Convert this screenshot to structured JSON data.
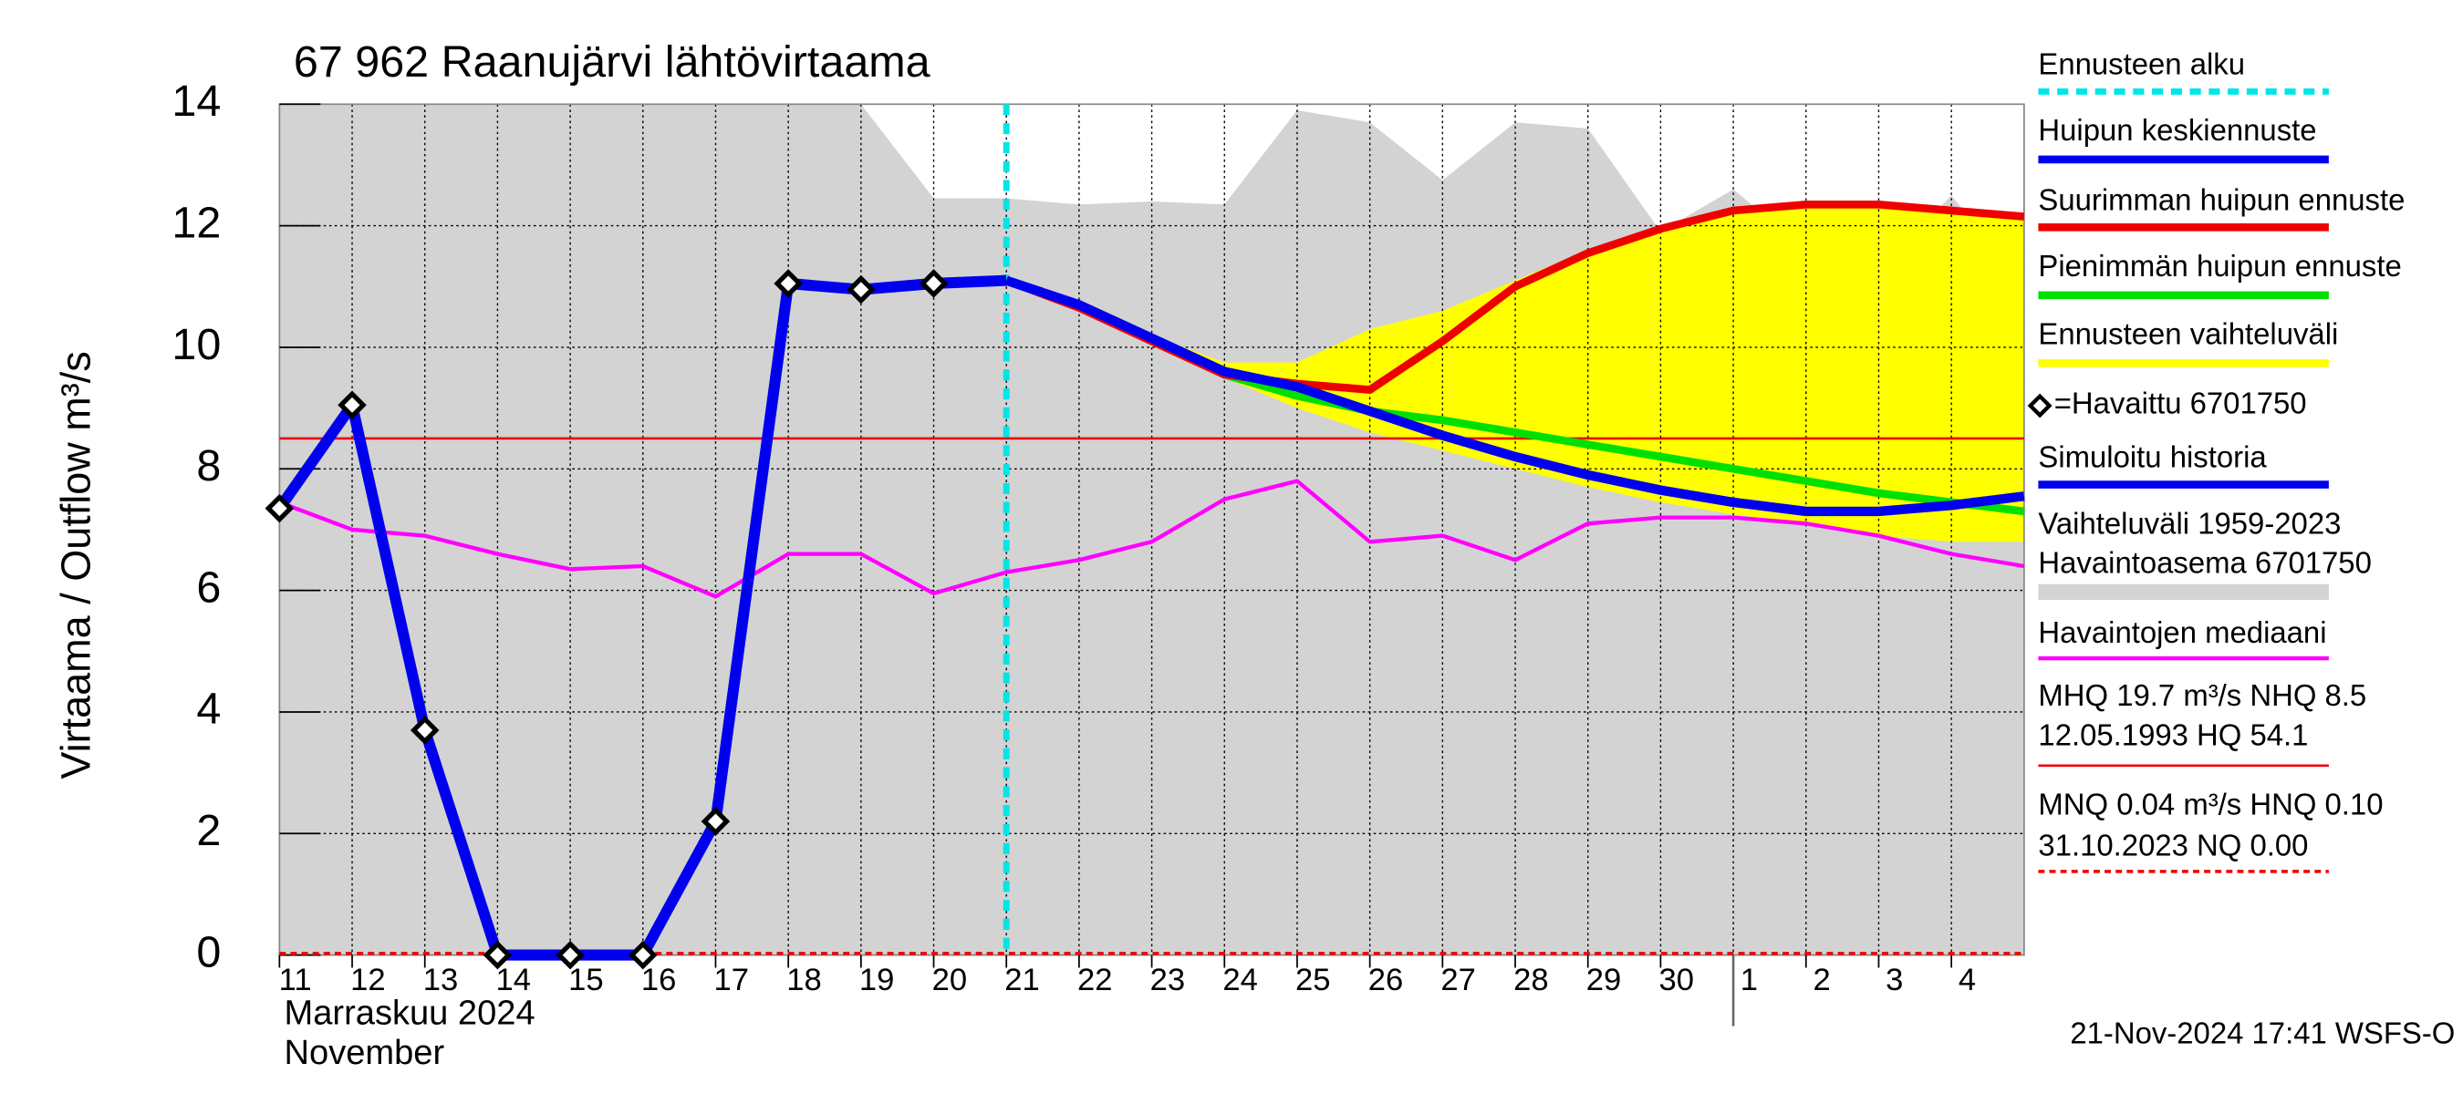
{
  "chart_data": {
    "type": "line",
    "title": "67 962 Raanujärvi lähtövirtaama",
    "y_label": "Virtaama / Outflow   m³/s",
    "month_labels": [
      "Marraskuu 2024",
      "November"
    ],
    "timestamp": "21-Nov-2024 17:41 WSFS-O",
    "categories": [
      "11",
      "12",
      "13",
      "14",
      "15",
      "16",
      "17",
      "18",
      "19",
      "20",
      "21",
      "22",
      "23",
      "24",
      "25",
      "26",
      "27",
      "28",
      "29",
      "30",
      "1",
      "2",
      "3",
      "4",
      null
    ],
    "ylim": [
      0,
      14
    ],
    "yticks": [
      0,
      2,
      4,
      6,
      8,
      10,
      12,
      14
    ],
    "grid": true,
    "forecast_start": {
      "name_lines": [
        "Ennusteen alku"
      ],
      "color": "#00e5e5",
      "at": "21"
    },
    "series": {
      "variability": {
        "name_lines": [
          "Vaihteluväli 1959-2023",
          " Havaintoasema 6701750"
        ],
        "color": "#d3d3d3",
        "values": [
          14,
          14,
          14,
          14,
          14,
          14,
          14,
          14,
          14,
          12.45,
          12.45,
          12.35,
          12.4,
          12.35,
          13.9,
          13.7,
          12.75,
          13.7,
          13.6,
          11.9,
          12.6,
          11.6,
          11.25,
          12.5,
          11.0
        ]
      },
      "forecast_range": {
        "name_lines": [
          "Ennusteen vaihteluväli"
        ],
        "color": "#ffff00",
        "upper": [
          null,
          null,
          null,
          null,
          null,
          null,
          null,
          null,
          null,
          null,
          11.1,
          10.75,
          10.2,
          9.75,
          9.75,
          10.3,
          10.6,
          11.1,
          11.6,
          12.0,
          12.3,
          12.35,
          12.35,
          12.3,
          12.15
        ],
        "lower": [
          null,
          null,
          null,
          null,
          null,
          null,
          null,
          null,
          null,
          null,
          11.1,
          10.7,
          10.1,
          9.5,
          9.0,
          8.6,
          8.3,
          8.0,
          7.7,
          7.45,
          7.25,
          7.1,
          6.9,
          6.8,
          6.8
        ]
      },
      "median": {
        "name_lines": [
          "Havaintojen mediaani"
        ],
        "color": "#ff00ff",
        "values": [
          7.45,
          7.0,
          6.9,
          6.6,
          6.35,
          6.4,
          5.9,
          6.6,
          6.6,
          5.95,
          6.3,
          6.5,
          6.8,
          7.5,
          7.8,
          6.8,
          6.9,
          6.5,
          7.1,
          7.2,
          7.2,
          7.1,
          6.9,
          6.6,
          6.4
        ]
      },
      "min_forecast": {
        "name_lines": [
          "Pienimmän huipun ennuste"
        ],
        "color": "#00e000",
        "values": [
          null,
          null,
          null,
          null,
          null,
          null,
          null,
          null,
          null,
          null,
          11.1,
          10.7,
          10.15,
          9.55,
          9.2,
          8.95,
          8.8,
          8.6,
          8.4,
          8.2,
          8.0,
          7.8,
          7.6,
          7.45,
          7.3
        ]
      },
      "max_forecast": {
        "name_lines": [
          "Suurimman huipun ennuste"
        ],
        "color": "#ee0000",
        "values": [
          null,
          null,
          null,
          null,
          null,
          null,
          null,
          null,
          null,
          null,
          11.1,
          10.65,
          10.1,
          9.55,
          9.4,
          9.3,
          10.1,
          11.0,
          11.55,
          11.95,
          12.25,
          12.35,
          12.35,
          12.25,
          12.15
        ]
      },
      "mean_forecast": {
        "name_lines": [
          "Huipun keskiennuste"
        ],
        "color": "#0000ee",
        "values": [
          null,
          null,
          null,
          null,
          null,
          null,
          null,
          null,
          null,
          null,
          11.1,
          10.7,
          10.15,
          9.6,
          9.35,
          8.95,
          8.55,
          8.2,
          7.9,
          7.65,
          7.45,
          7.3,
          7.3,
          7.4,
          7.55
        ]
      },
      "simulated": {
        "name_lines": [
          "Simuloitu historia"
        ],
        "color": "#0000ee",
        "values": [
          7.35,
          9.05,
          3.7,
          0,
          0,
          0,
          2.2,
          11.05,
          10.95,
          11.05,
          11.1,
          null,
          null,
          null,
          null,
          null,
          null,
          null,
          null,
          null,
          null,
          null,
          null,
          null,
          null
        ]
      },
      "observed": {
        "name_lines": [
          "=Havaittu 6701750"
        ],
        "color": "#000000",
        "values": [
          7.35,
          9.05,
          3.7,
          0,
          0,
          0,
          2.2,
          11.05,
          10.95,
          11.05,
          null,
          null,
          null,
          null,
          null,
          null,
          null,
          null,
          null,
          null,
          null,
          null,
          null,
          null,
          null
        ]
      }
    },
    "reference_lines": {
      "nhq": {
        "name_lines": [
          "MHQ 19.7 m³/s NHQ  8.5",
          "12.05.1993 HQ 54.1"
        ],
        "color": "#ee0000",
        "value": 8.5
      },
      "nq": {
        "name_lines": [
          "MNQ 0.04 m³/s HNQ 0.10",
          "31.10.2023 NQ 0.00"
        ],
        "color": "#ee0000",
        "value": 0.0,
        "dashed": true
      }
    }
  }
}
